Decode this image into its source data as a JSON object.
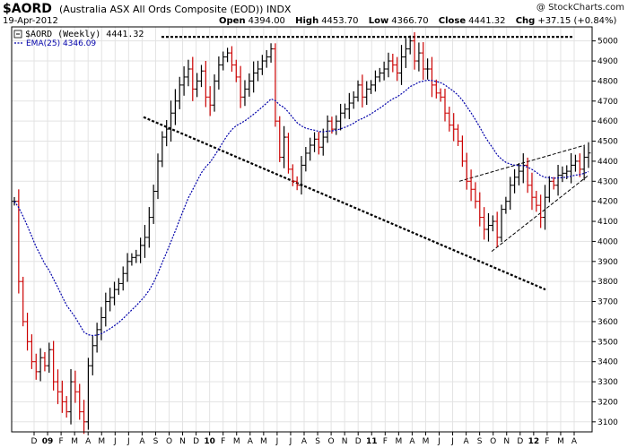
{
  "header": {
    "symbol": "$AORD",
    "description": "(Australia ASX All Ords Composite (EOD))  INDX",
    "date": "19-Apr-2012",
    "open_label": "Open",
    "open_value": "4394.00",
    "high_label": "High",
    "high_value": "4453.70",
    "low_label": "Low",
    "low_value": "4366.70",
    "close_label": "Close",
    "close_value": "4441.32",
    "chg_label": "Chg",
    "chg_value": "+37.15 (+0.84%)",
    "watermark": "@ StockCharts.com"
  },
  "legend": {
    "price_text": "$AORD (Weekly) 4441.32",
    "ema_text": "EMA(25) 4346.09"
  },
  "colors": {
    "up": "#000000",
    "down": "#cc0000",
    "ema": "#0000aa",
    "grid": "#e3e3e3",
    "frame": "#000000"
  },
  "chart_data": {
    "type": "bar",
    "title": "$AORD (Australia ASX All Ords Composite (EOD)) INDX",
    "period": "weekly",
    "ylim": [
      3050,
      5070
    ],
    "y_ticks": [
      3100,
      3200,
      3300,
      3400,
      3500,
      3600,
      3700,
      3800,
      3900,
      4000,
      4100,
      4200,
      4300,
      4400,
      4500,
      4600,
      4700,
      4800,
      4900,
      5000
    ],
    "x_tick_labels": [
      "D",
      "09",
      "F",
      "M",
      "A",
      "M",
      "J",
      "J",
      "A",
      "S",
      "O",
      "N",
      "D",
      "10",
      "F",
      "M",
      "A",
      "M",
      "J",
      "J",
      "A",
      "S",
      "O",
      "N",
      "D",
      "11",
      "F",
      "M",
      "A",
      "M",
      "J",
      "J",
      "A",
      "S",
      "O",
      "N",
      "D",
      "12",
      "F",
      "M",
      "A"
    ],
    "weekly_close_approx": [
      4200,
      3800,
      3600,
      3500,
      3400,
      3350,
      3420,
      3380,
      3460,
      3300,
      3250,
      3200,
      3150,
      3300,
      3250,
      3150,
      3100,
      3380,
      3480,
      3560,
      3620,
      3700,
      3720,
      3760,
      3790,
      3840,
      3900,
      3920,
      3930,
      3980,
      4020,
      4120,
      4250,
      4400,
      4520,
      4560,
      4640,
      4700,
      4780,
      4820,
      4860,
      4760,
      4800,
      4850,
      4720,
      4680,
      4800,
      4880,
      4920,
      4940,
      4880,
      4820,
      4720,
      4760,
      4800,
      4840,
      4860,
      4900,
      4920,
      4960,
      4600,
      4420,
      4520,
      4360,
      4300,
      4280,
      4380,
      4440,
      4480,
      4510,
      4470,
      4520,
      4600,
      4560,
      4600,
      4640,
      4660,
      4690,
      4720,
      4780,
      4720,
      4760,
      4780,
      4820,
      4840,
      4860,
      4900,
      4880,
      4840,
      4920,
      4960,
      5000,
      4900,
      4940,
      4860,
      4860,
      4780,
      4740,
      4720,
      4640,
      4580,
      4560,
      4500,
      4400,
      4300,
      4260,
      4200,
      4120,
      4060,
      4080,
      4100,
      4020,
      4160,
      4200,
      4280,
      4320,
      4350,
      4380,
      4280,
      4220,
      4180,
      4120,
      4220,
      4300,
      4280,
      4330,
      4340,
      4350,
      4380,
      4400,
      4360,
      4420,
      4441
    ],
    "series": [
      {
        "name": "$AORD (Weekly)",
        "last": 4441.32
      },
      {
        "name": "EMA(25)",
        "last": 4346.09
      }
    ]
  }
}
